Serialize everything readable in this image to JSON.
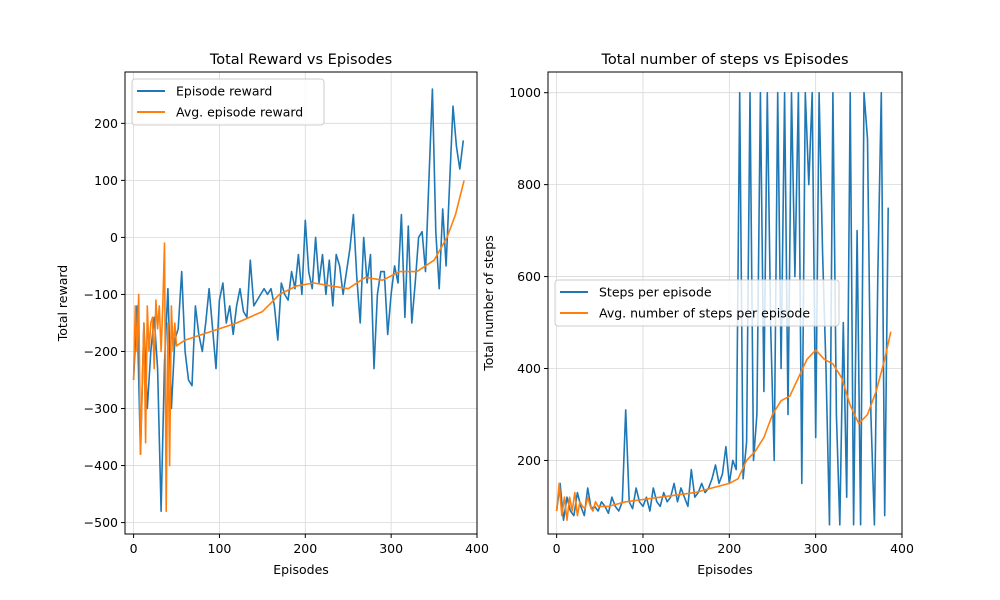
{
  "chart_data": [
    {
      "type": "line",
      "title": "Total Reward vs Episodes",
      "xlabel": "Episodes",
      "ylabel": "Total reward",
      "xlim": [
        -10,
        400
      ],
      "ylim": [
        -520,
        290
      ],
      "xticks": [
        0,
        100,
        200,
        300,
        400
      ],
      "yticks": [
        -500,
        -400,
        -300,
        -200,
        -100,
        0,
        100,
        200
      ],
      "grid": true,
      "legend_position": "upper left",
      "series": [
        {
          "name": "Episode reward",
          "color": "#1f77b4",
          "x_start": 0,
          "x_step": 4,
          "values": [
            -250,
            -120,
            -380,
            -150,
            -300,
            -200,
            -140,
            -230,
            -480,
            -220,
            -90,
            -300,
            -180,
            -160,
            -60,
            -200,
            -250,
            -260,
            -120,
            -170,
            -200,
            -150,
            -90,
            -160,
            -230,
            -110,
            -80,
            -150,
            -120,
            -170,
            -120,
            -90,
            -130,
            -140,
            -40,
            -120,
            -110,
            -100,
            -90,
            -100,
            -90,
            -120,
            -180,
            -80,
            -100,
            -110,
            -60,
            -90,
            -30,
            -100,
            30,
            -60,
            -90,
            0,
            -80,
            -30,
            -100,
            -40,
            -120,
            -30,
            -50,
            -100,
            -60,
            -20,
            40,
            -70,
            -150,
            0,
            -80,
            -30,
            -230,
            -100,
            -60,
            -60,
            -170,
            -100,
            -50,
            -80,
            40,
            -140,
            20,
            -150,
            -80,
            0,
            10,
            -60,
            100,
            260,
            10,
            -90,
            50,
            -50,
            90,
            230,
            160,
            120,
            170
          ]
        },
        {
          "name": "Avg. episode reward",
          "color": "#ff7f0e",
          "x": [
            0,
            2,
            4,
            6,
            8,
            10,
            12,
            14,
            16,
            18,
            20,
            22,
            24,
            26,
            28,
            30,
            32,
            34,
            36,
            38,
            40,
            42,
            44,
            46,
            48,
            50,
            60,
            80,
            100,
            120,
            150,
            170,
            190,
            210,
            230,
            250,
            270,
            290,
            310,
            330,
            350,
            365,
            375,
            385
          ],
          "values": [
            -250,
            -120,
            -200,
            -100,
            -380,
            -260,
            -150,
            -360,
            -120,
            -200,
            -150,
            -140,
            -230,
            -110,
            -160,
            -120,
            -200,
            -120,
            -10,
            -480,
            -150,
            -400,
            -120,
            -200,
            -150,
            -190,
            -180,
            -170,
            -160,
            -150,
            -130,
            -100,
            -85,
            -80,
            -85,
            -90,
            -70,
            -75,
            -60,
            -60,
            -40,
            0,
            40,
            100
          ]
        }
      ]
    },
    {
      "type": "line",
      "title": "Total number of steps vs Episodes",
      "xlabel": "Episodes",
      "ylabel": "Total number of steps",
      "xlim": [
        -10,
        400
      ],
      "ylim": [
        40,
        1045
      ],
      "xticks": [
        0,
        100,
        200,
        300,
        400
      ],
      "yticks": [
        200,
        400,
        600,
        800,
        1000
      ],
      "grid": true,
      "legend_position": "center right",
      "series": [
        {
          "name": "Steps per episode",
          "color": "#1f77b4",
          "x_start": 0,
          "x_step": 4,
          "values": [
            90,
            150,
            70,
            120,
            90,
            80,
            130,
            100,
            80,
            140,
            95,
            100,
            90,
            110,
            100,
            85,
            120,
            100,
            90,
            110,
            310,
            110,
            95,
            140,
            110,
            100,
            120,
            90,
            140,
            110,
            100,
            130,
            110,
            120,
            150,
            110,
            140,
            120,
            100,
            180,
            120,
            130,
            150,
            130,
            140,
            160,
            190,
            150,
            170,
            230,
            150,
            200,
            180,
            1000,
            160,
            240,
            1000,
            200,
            300,
            1000,
            350,
            1000,
            480,
            200,
            1000,
            400,
            1000,
            300,
            1000,
            600,
            1000,
            150,
            1000,
            800,
            1000,
            250,
            1000,
            650,
            400,
            60,
            1000,
            300,
            60,
            500,
            120,
            1000,
            60,
            700,
            60,
            1000,
            900,
            300,
            60,
            600,
            1000,
            80,
            750
          ]
        },
        {
          "name": "Avg. number of steps per episode",
          "color": "#ff7f0e",
          "x": [
            0,
            3,
            6,
            9,
            12,
            15,
            18,
            21,
            24,
            27,
            30,
            33,
            36,
            39,
            42,
            45,
            48,
            60,
            80,
            100,
            120,
            140,
            160,
            180,
            200,
            210,
            220,
            230,
            240,
            250,
            260,
            270,
            280,
            290,
            300,
            310,
            320,
            330,
            340,
            350,
            360,
            370,
            380,
            387
          ],
          "values": [
            90,
            150,
            80,
            120,
            70,
            120,
            90,
            130,
            80,
            110,
            100,
            95,
            120,
            100,
            90,
            110,
            100,
            100,
            110,
            115,
            120,
            125,
            130,
            140,
            150,
            160,
            200,
            220,
            250,
            300,
            330,
            340,
            380,
            420,
            440,
            420,
            410,
            380,
            320,
            280,
            300,
            350,
            420,
            480
          ]
        }
      ]
    }
  ]
}
